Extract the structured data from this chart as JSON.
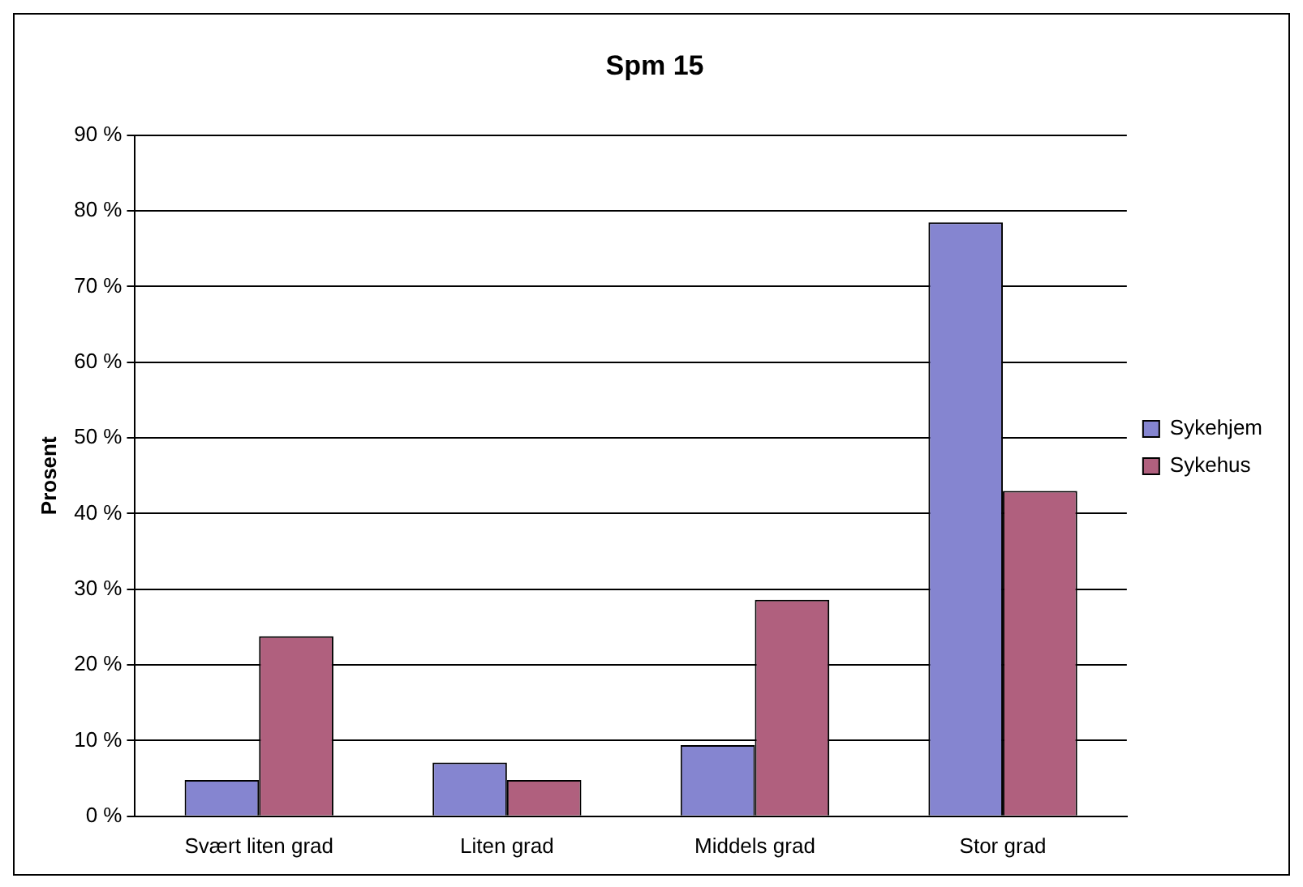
{
  "chart_data": {
    "type": "bar",
    "title": "Spm 15",
    "ylabel": "Prosent",
    "categories": [
      "Svært liten grad",
      "Liten grad",
      "Middels grad",
      "Stor grad"
    ],
    "series": [
      {
        "name": "Sykehjem",
        "color": "#8585d0",
        "values": [
          4.8,
          7.1,
          9.4,
          78.5
        ]
      },
      {
        "name": "Sykehus",
        "color": "#b0607e",
        "values": [
          23.8,
          4.8,
          28.6,
          43.0
        ]
      }
    ],
    "ylim": [
      0,
      90
    ],
    "yticks": [
      {
        "value": 0,
        "label": "0 %"
      },
      {
        "value": 10,
        "label": "10 %"
      },
      {
        "value": 20,
        "label": "20 %"
      },
      {
        "value": 30,
        "label": "30 %"
      },
      {
        "value": 40,
        "label": "40 %"
      },
      {
        "value": 50,
        "label": "50 %"
      },
      {
        "value": 60,
        "label": "60 %"
      },
      {
        "value": 70,
        "label": "70 %"
      },
      {
        "value": 80,
        "label": "80 %"
      },
      {
        "value": 90,
        "label": "90 %"
      }
    ],
    "grid": "y",
    "legend": "right"
  }
}
